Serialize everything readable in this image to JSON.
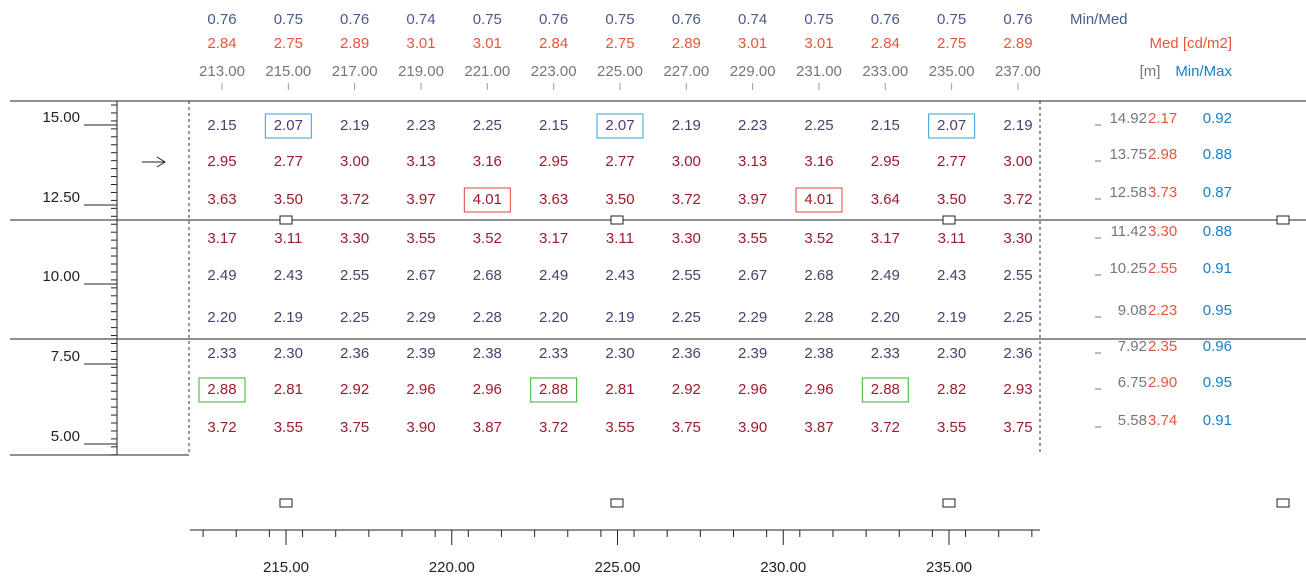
{
  "header": {
    "min_med_label": "Min/Med",
    "med_label": "Med [cd/m2]",
    "pos_label": "[m]",
    "min_max_label": "Min/Max",
    "min_med": [
      "0.76",
      "0.75",
      "0.76",
      "0.74",
      "0.75",
      "0.76",
      "0.75",
      "0.76",
      "0.74",
      "0.75",
      "0.76",
      "0.75",
      "0.76"
    ],
    "med": [
      "2.84",
      "2.75",
      "2.89",
      "3.01",
      "3.01",
      "2.84",
      "2.75",
      "2.89",
      "3.01",
      "3.01",
      "2.84",
      "2.75",
      "2.89"
    ],
    "positions": [
      "213.00",
      "215.00",
      "217.00",
      "219.00",
      "221.00",
      "223.00",
      "225.00",
      "227.00",
      "229.00",
      "231.00",
      "233.00",
      "235.00",
      "237.00"
    ]
  },
  "grid": {
    "rows": [
      {
        "values": [
          "2.15",
          "2.07",
          "2.19",
          "2.23",
          "2.25",
          "2.15",
          "2.07",
          "2.19",
          "2.23",
          "2.25",
          "2.15",
          "2.07",
          "2.19"
        ],
        "position": "14.92",
        "med": "2.17",
        "min_max": "0.92"
      },
      {
        "values": [
          "2.95",
          "2.77",
          "3.00",
          "3.13",
          "3.16",
          "2.95",
          "2.77",
          "3.00",
          "3.13",
          "3.16",
          "2.95",
          "2.77",
          "3.00"
        ],
        "position": "13.75",
        "med": "2.98",
        "min_max": "0.88"
      },
      {
        "values": [
          "3.63",
          "3.50",
          "3.72",
          "3.97",
          "4.01",
          "3.63",
          "3.50",
          "3.72",
          "3.97",
          "4.01",
          "3.64",
          "3.50",
          "3.72"
        ],
        "position": "12.58",
        "med": "3.73",
        "min_max": "0.87"
      },
      {
        "values": [
          "3.17",
          "3.11",
          "3.30",
          "3.55",
          "3.52",
          "3.17",
          "3.11",
          "3.30",
          "3.55",
          "3.52",
          "3.17",
          "3.11",
          "3.30"
        ],
        "position": "11.42",
        "med": "3.30",
        "min_max": "0.88"
      },
      {
        "values": [
          "2.49",
          "2.43",
          "2.55",
          "2.67",
          "2.68",
          "2.49",
          "2.43",
          "2.55",
          "2.67",
          "2.68",
          "2.49",
          "2.43",
          "2.55"
        ],
        "position": "10.25",
        "med": "2.55",
        "min_max": "0.91"
      },
      {
        "values": [
          "2.20",
          "2.19",
          "2.25",
          "2.29",
          "2.28",
          "2.20",
          "2.19",
          "2.25",
          "2.29",
          "2.28",
          "2.20",
          "2.19",
          "2.25"
        ],
        "position": "9.08",
        "med": "2.23",
        "min_max": "0.95"
      },
      {
        "values": [
          "2.33",
          "2.30",
          "2.36",
          "2.39",
          "2.38",
          "2.33",
          "2.30",
          "2.36",
          "2.39",
          "2.38",
          "2.33",
          "2.30",
          "2.36"
        ],
        "position": "7.92",
        "med": "2.35",
        "min_max": "0.96"
      },
      {
        "values": [
          "2.88",
          "2.81",
          "2.92",
          "2.96",
          "2.96",
          "2.88",
          "2.81",
          "2.92",
          "2.96",
          "2.96",
          "2.88",
          "2.82",
          "2.93"
        ],
        "position": "6.75",
        "med": "2.90",
        "min_max": "0.95"
      },
      {
        "values": [
          "3.72",
          "3.55",
          "3.75",
          "3.90",
          "3.87",
          "3.72",
          "3.55",
          "3.75",
          "3.90",
          "3.87",
          "3.72",
          "3.55",
          "3.75"
        ],
        "position": "5.58",
        "med": "3.74",
        "min_max": "0.91"
      }
    ]
  },
  "left_axis": {
    "labels": [
      "15.00",
      "12.50",
      "10.00",
      "7.50",
      "5.00"
    ]
  },
  "bottom_axis": {
    "labels": [
      "215.00",
      "220.00",
      "225.00",
      "230.00",
      "235.00"
    ]
  }
}
